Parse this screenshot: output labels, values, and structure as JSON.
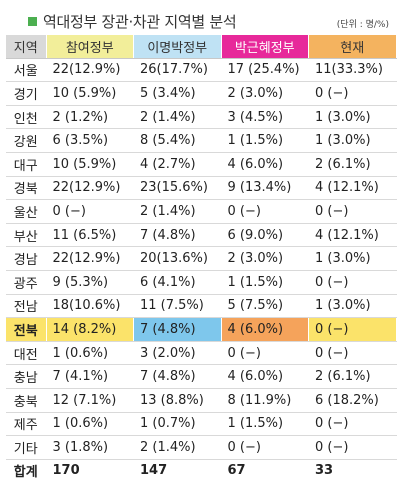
{
  "title": "역대정부 장관·차관 지역별 분석",
  "unit": "(단위 : 명/%)",
  "colors": {
    "title_square": "#4caf50",
    "header_region": "#d9d9d9",
    "header_1": "#f2ee9a",
    "header_2": "#bfe2f4",
    "header_3": "#e7299a",
    "header_4": "#f4b35f",
    "highlight_row": "#fbe36a",
    "highlight_2": "#7ec7ec",
    "highlight_3": "#f5a35b"
  },
  "headers": [
    "지역",
    "참여정부",
    "이명박정부",
    "박근혜정부",
    "현재"
  ],
  "rows": [
    {
      "region": "서울",
      "c1": "22(12.9%)",
      "c2": "26(17.7%)",
      "c3": "17 (25.4%)",
      "c4": "11(33.3%)"
    },
    {
      "region": "경기",
      "c1": "10  (5.9%)",
      "c2": "5  (3.4%)",
      "c3": "2   (3.0%)",
      "c4": "0       (−)"
    },
    {
      "region": "인천",
      "c1": "2  (1.2%)",
      "c2": "2  (1.4%)",
      "c3": "3   (4.5%)",
      "c4": "1   (3.0%)"
    },
    {
      "region": "강원",
      "c1": "6  (3.5%)",
      "c2": "8  (5.4%)",
      "c3": "1   (1.5%)",
      "c4": "1   (3.0%)"
    },
    {
      "region": "대구",
      "c1": "10  (5.9%)",
      "c2": "4  (2.7%)",
      "c3": "4   (6.0%)",
      "c4": "2   (6.1%)"
    },
    {
      "region": "경북",
      "c1": "22(12.9%)",
      "c2": "23(15.6%)",
      "c3": "9 (13.4%)",
      "c4": "4 (12.1%)"
    },
    {
      "region": "울산",
      "c1": "0       (−)",
      "c2": "2  (1.4%)",
      "c3": "0       (−)",
      "c4": "0       (−)"
    },
    {
      "region": "부산",
      "c1": "11  (6.5%)",
      "c2": "7  (4.8%)",
      "c3": "6   (9.0%)",
      "c4": "4 (12.1%)"
    },
    {
      "region": "경남",
      "c1": "22(12.9%)",
      "c2": "20(13.6%)",
      "c3": "2   (3.0%)",
      "c4": "1   (3.0%)"
    },
    {
      "region": "광주",
      "c1": "9  (5.3%)",
      "c2": "6  (4.1%)",
      "c3": "1   (1.5%)",
      "c4": "0       (−)"
    },
    {
      "region": "전남",
      "c1": "18(10.6%)",
      "c2": "11  (7.5%)",
      "c3": "5   (7.5%)",
      "c4": "1   (3.0%)"
    },
    {
      "region": "전북",
      "c1": "14  (8.2%)",
      "c2": "7  (4.8%)",
      "c3": "4   (6.0%)",
      "c4": "0       (−)",
      "highlight": true
    },
    {
      "region": "대전",
      "c1": "1  (0.6%)",
      "c2": "3  (2.0%)",
      "c3": "0       (−)",
      "c4": "0       (−)"
    },
    {
      "region": "충남",
      "c1": "7  (4.1%)",
      "c2": "7  (4.8%)",
      "c3": "4   (6.0%)",
      "c4": "2   (6.1%)"
    },
    {
      "region": "충북",
      "c1": "12  (7.1%)",
      "c2": "13  (8.8%)",
      "c3": "8 (11.9%)",
      "c4": "6 (18.2%)"
    },
    {
      "region": "제주",
      "c1": "1  (0.6%)",
      "c2": "1  (0.7%)",
      "c3": "1   (1.5%)",
      "c4": "0       (−)"
    },
    {
      "region": "기타",
      "c1": "3  (1.8%)",
      "c2": "2  (1.4%)",
      "c3": "0       (−)",
      "c4": "0       (−)"
    }
  ],
  "total": {
    "region": "합계",
    "c1": "170",
    "c2": "147",
    "c3": "67",
    "c4": "33"
  }
}
